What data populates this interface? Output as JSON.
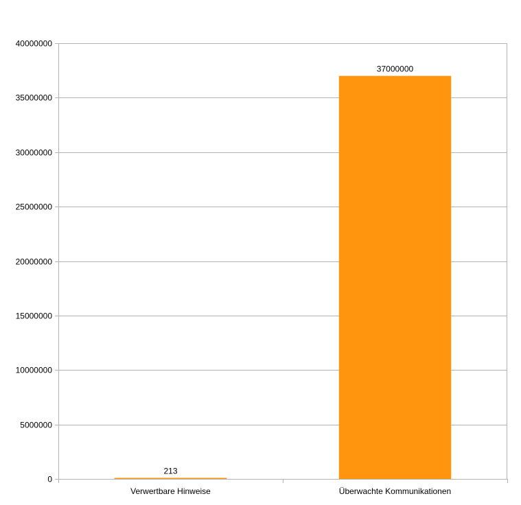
{
  "chart_data": {
    "type": "bar",
    "title": "",
    "xlabel": "",
    "ylabel": "",
    "categories": [
      "Verwertbare Hinweise",
      "Überwachte Kommunikationen"
    ],
    "values": [
      213,
      37000000
    ],
    "data_labels": [
      "213",
      "37000000"
    ],
    "ylim": [
      0,
      40000000
    ],
    "yticks": [
      0,
      5000000,
      10000000,
      15000000,
      20000000,
      25000000,
      30000000,
      35000000,
      40000000
    ],
    "ytick_labels": [
      "0",
      "5000000",
      "10000000",
      "15000000",
      "20000000",
      "25000000",
      "30000000",
      "35000000",
      "40000000"
    ],
    "grid": true,
    "legend": "none",
    "colors": {
      "bar": "#ff950e",
      "grid": "#b3b3b3",
      "axis": "#b3b3b3",
      "text": "#000000",
      "background": "#ffffff"
    }
  }
}
